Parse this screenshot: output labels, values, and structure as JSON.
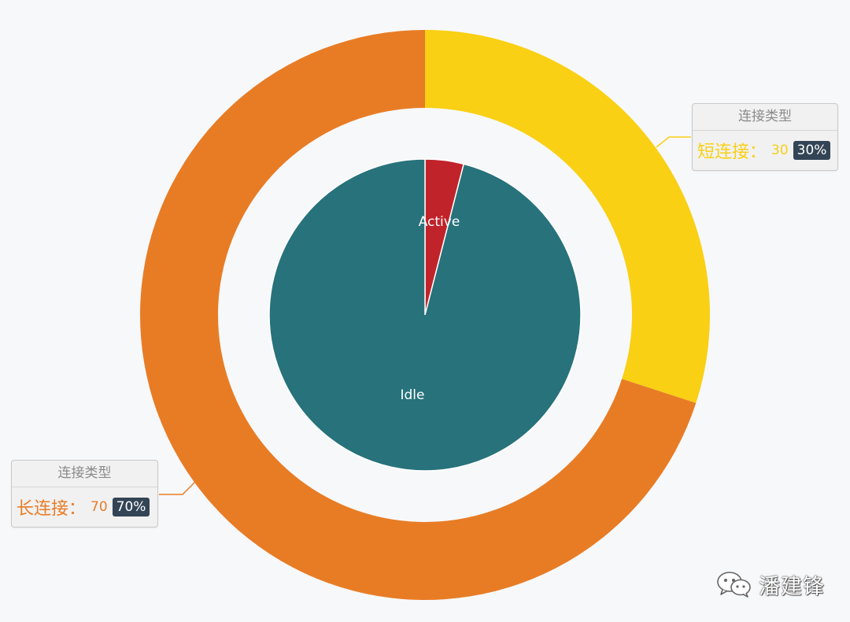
{
  "chart_data": {
    "type": "pie",
    "series": [
      {
        "name": "",
        "kind": "donut",
        "data": [
          {
            "label": "短连接",
            "value": 30,
            "percent": "30%",
            "color": "#f9d014"
          },
          {
            "label": "长连接",
            "value": 70,
            "percent": "70%",
            "color": "#e87c25"
          }
        ]
      },
      {
        "name": "",
        "kind": "pie",
        "data": [
          {
            "label": "Active",
            "value": 4,
            "color": "#c1232b"
          },
          {
            "label": "Idle",
            "value": 96,
            "color": "#27727b"
          }
        ]
      }
    ],
    "callouts": [
      {
        "title": "连接类型",
        "name": "短连接：",
        "value": "30",
        "percent": "30%",
        "color": "#f9d014"
      },
      {
        "title": "连接类型",
        "name": "长连接：",
        "value": "70",
        "percent": "70%",
        "color": "#e87c25"
      }
    ]
  },
  "watermark": {
    "text": "潘建锋",
    "icon": "wechat-icon"
  }
}
